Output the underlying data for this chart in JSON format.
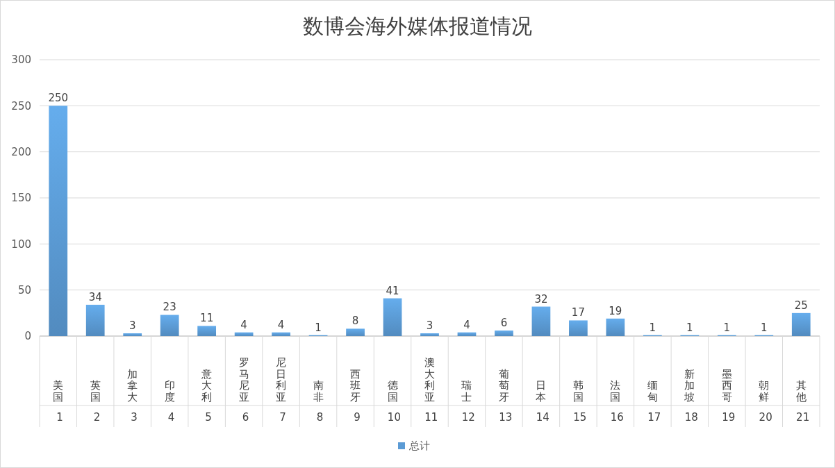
{
  "chart_data": {
    "type": "bar",
    "title": "数博会海外媒体报道情况",
    "categories": [
      "美国\n1",
      "英国\n2",
      "加拿大\n3",
      "印度\n4",
      "意大利\n5",
      "罗马尼亚\n6",
      "尼日利亚\n7",
      "南非\n8",
      "西班牙\n9",
      "德国\n10",
      "澳大利亚\n11",
      "瑞士\n12",
      "葡萄牙\n13",
      "日本\n14",
      "韩国\n15",
      "法国\n16",
      "缅甸\n17",
      "新加坡\n18",
      "墨西哥\n19",
      "朝鲜\n20",
      "其他\n21"
    ],
    "series": [
      {
        "name": "总计",
        "color": "#5b9bd5",
        "values": [
          250,
          34,
          3,
          23,
          11,
          4,
          4,
          1,
          8,
          41,
          3,
          4,
          6,
          32,
          17,
          19,
          1,
          1,
          1,
          1,
          25
        ]
      }
    ],
    "ylim": [
      0,
      300
    ],
    "yticks": [
      0,
      50,
      100,
      150,
      200,
      250,
      300
    ],
    "grid": "y",
    "legend": "bottom",
    "data_labels": true
  }
}
